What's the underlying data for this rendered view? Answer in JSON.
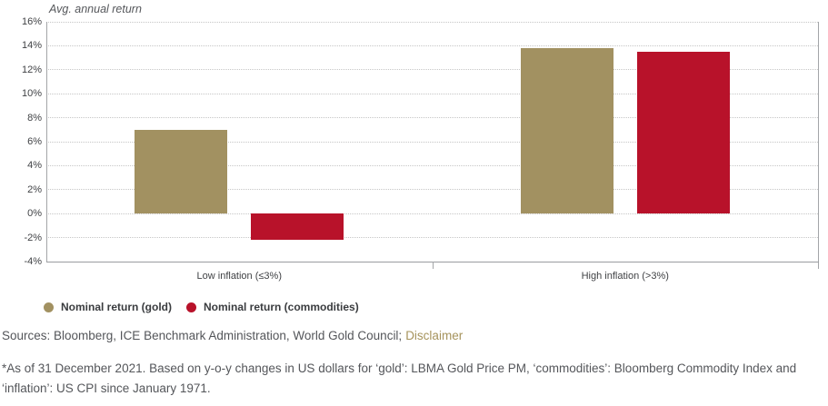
{
  "chart_data": {
    "type": "bar",
    "title": "Avg. annual return",
    "categories": [
      "Low inflation (≤3%)",
      "High inflation (>3%)"
    ],
    "series": [
      {
        "name": "Nominal return (gold)",
        "color": "#a29161",
        "values": [
          7.0,
          13.8
        ]
      },
      {
        "name": "Nominal return (commodities)",
        "color": "#b8122a",
        "values": [
          -2.2,
          13.5
        ]
      }
    ],
    "ylim": [
      -4,
      16
    ],
    "ytick_step": 2,
    "ytick_labels": [
      "16%",
      "14%",
      "12%",
      "10%",
      "8%",
      "6%",
      "4%",
      "2%",
      "0%",
      "-2%",
      "-4%"
    ],
    "xlabel": "",
    "ylabel": "Avg. annual return",
    "grid": "dotted-horizontal",
    "legend_position": "bottom-left"
  },
  "footer": {
    "sources": "Sources: Bloomberg, ICE Benchmark Administration, World Gold Council;",
    "disclaimer": "Disclaimer",
    "footnote": "*As of 31 December 2021. Based on y-o-y changes in US dollars for ‘gold’: LBMA Gold Price PM, ‘commodities’: Bloomberg Commodity Index and ‘inflation’: US CPI since January 1971."
  }
}
